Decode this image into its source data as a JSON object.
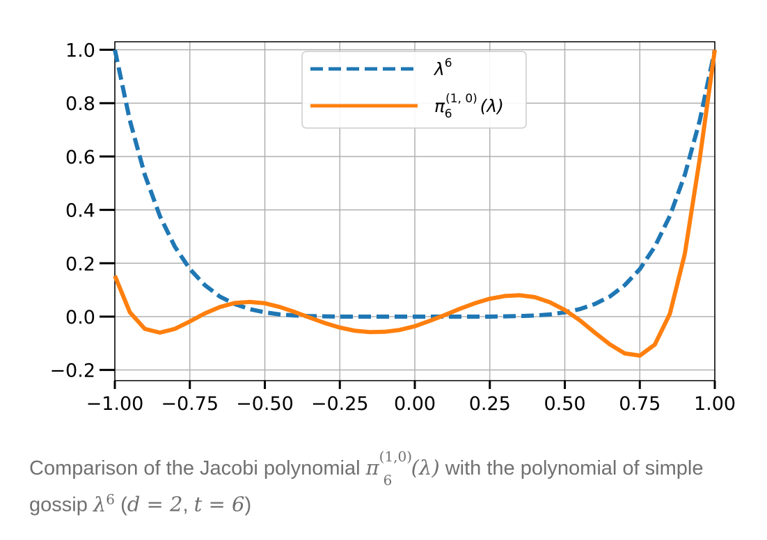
{
  "chart_data": {
    "type": "line",
    "title": "",
    "xlabel": "",
    "ylabel": "",
    "xlim": [
      -1.0,
      1.0
    ],
    "ylim": [
      -0.24,
      1.03
    ],
    "xticks": [
      "−1.00",
      "−0.75",
      "−0.50",
      "−0.25",
      "0.00",
      "0.25",
      "0.50",
      "0.75",
      "1.00"
    ],
    "yticks": [
      "−0.2",
      "0.0",
      "0.2",
      "0.4",
      "0.6",
      "0.8",
      "1.0"
    ],
    "xtick_values": [
      -1.0,
      -0.75,
      -0.5,
      -0.25,
      0.0,
      0.25,
      0.5,
      0.75,
      1.0
    ],
    "ytick_values": [
      -0.2,
      0.0,
      0.2,
      0.4,
      0.6,
      0.8,
      1.0
    ],
    "grid": true,
    "legend_position": "top-center",
    "series": [
      {
        "name": "λ⁶",
        "style": "dashed",
        "color": "#1f77b4",
        "x": [
          -1.0,
          -0.95,
          -0.9,
          -0.85,
          -0.8,
          -0.75,
          -0.7,
          -0.65,
          -0.6,
          -0.55,
          -0.5,
          -0.45,
          -0.4,
          -0.35,
          -0.3,
          -0.25,
          -0.2,
          -0.15,
          -0.1,
          -0.05,
          0.0,
          0.05,
          0.1,
          0.15,
          0.2,
          0.25,
          0.3,
          0.35,
          0.4,
          0.45,
          0.5,
          0.55,
          0.6,
          0.65,
          0.7,
          0.75,
          0.8,
          0.85,
          0.9,
          0.95,
          1.0
        ],
        "y": [
          1.0,
          0.735,
          0.531,
          0.377,
          0.262,
          0.178,
          0.118,
          0.075,
          0.047,
          0.028,
          0.016,
          0.008,
          0.004,
          0.002,
          0.001,
          0.0,
          0.0,
          0.0,
          0.0,
          0.0,
          0.0,
          0.0,
          0.0,
          0.0,
          0.0,
          0.0,
          0.001,
          0.002,
          0.004,
          0.008,
          0.016,
          0.028,
          0.047,
          0.075,
          0.118,
          0.178,
          0.262,
          0.377,
          0.531,
          0.735,
          1.0
        ]
      },
      {
        "name": "π6(1, 0)(λ)",
        "style": "solid",
        "color": "#ff7f0e",
        "x": [
          -1.0,
          -0.95,
          -0.9,
          -0.85,
          -0.8,
          -0.75,
          -0.7,
          -0.65,
          -0.6,
          -0.55,
          -0.5,
          -0.45,
          -0.4,
          -0.35,
          -0.3,
          -0.25,
          -0.2,
          -0.15,
          -0.1,
          -0.05,
          0.0,
          0.05,
          0.1,
          0.15,
          0.2,
          0.25,
          0.3,
          0.35,
          0.4,
          0.45,
          0.5,
          0.55,
          0.6,
          0.65,
          0.7,
          0.75,
          0.8,
          0.85,
          0.9,
          0.95,
          1.0
        ],
        "y": [
          0.153,
          0.016,
          -0.046,
          -0.06,
          -0.046,
          -0.018,
          0.012,
          0.036,
          0.051,
          0.055,
          0.05,
          0.036,
          0.017,
          -0.004,
          -0.024,
          -0.041,
          -0.053,
          -0.058,
          -0.057,
          -0.05,
          -0.036,
          -0.016,
          0.006,
          0.029,
          0.05,
          0.067,
          0.077,
          0.08,
          0.073,
          0.054,
          0.025,
          -0.014,
          -0.06,
          -0.104,
          -0.138,
          -0.146,
          -0.105,
          0.01,
          0.235,
          0.592,
          1.0
        ]
      }
    ]
  },
  "legend": {
    "entry1": {
      "base": "λ",
      "sup": "6"
    },
    "entry2": {
      "base": "π",
      "sup": "(1, 0)",
      "sub": "6",
      "arg": "(λ)"
    }
  },
  "caption": {
    "text_before": "Comparison of the Jacobi polynomial ",
    "math1_base": "π",
    "math1_sup": "(1,0)",
    "math1_sub": "6",
    "math1_arg": "(λ)",
    "text_middle": " with the polynomial of simple gossip ",
    "math2_base": "λ",
    "math2_sup": "6",
    "text_paren_open": " (",
    "math_d": "d = 2",
    "comma": ", ",
    "math_t": "t = 6",
    "text_paren_close": ")"
  }
}
